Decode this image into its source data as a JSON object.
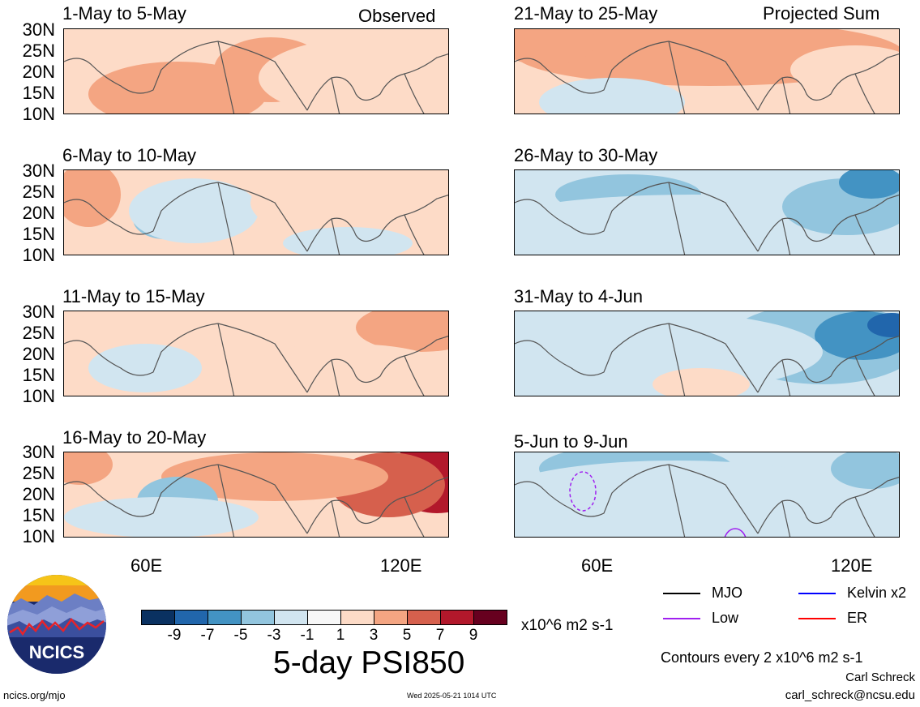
{
  "corner_labels": {
    "observed": "Observed",
    "projected": "Projected Sum"
  },
  "panels_left": [
    {
      "title": "1-May to 5-May"
    },
    {
      "title": "6-May to 10-May"
    },
    {
      "title": "11-May to 15-May"
    },
    {
      "title": "16-May to 20-May"
    }
  ],
  "panels_right": [
    {
      "title": "21-May to 25-May"
    },
    {
      "title": "26-May to 30-May"
    },
    {
      "title": "31-May to 4-Jun"
    },
    {
      "title": "5-Jun to 9-Jun"
    }
  ],
  "lat_labels": [
    "30N",
    "25N",
    "20N",
    "15N",
    "10N"
  ],
  "lon_labels": [
    "60E",
    "120E"
  ],
  "colorbar": {
    "colors": [
      "#0a3161",
      "#2166ac",
      "#4393c3",
      "#92c5de",
      "#d1e5f0",
      "#f7f7f7",
      "#fddbc7",
      "#f4a582",
      "#d6604d",
      "#b2182b",
      "#67001f"
    ],
    "ticks": [
      "-9",
      "-7",
      "-5",
      "-3",
      "-1",
      "1",
      "3",
      "5",
      "7",
      "9"
    ],
    "units": "x10^6 m2 s-1"
  },
  "main_title": "5-day PSI850",
  "legend": [
    {
      "label": "MJO",
      "color": "#000000"
    },
    {
      "label": "Kelvin x2",
      "color": "#0000ff"
    },
    {
      "label": "Low",
      "color": "#a020f0"
    },
    {
      "label": "ER",
      "color": "#ff0000"
    }
  ],
  "contour_note": "Contours every 2 x10^6 m2 s-1",
  "author": "Carl Schreck",
  "email": "carl_schreck@ncsu.edu",
  "site": "ncics.org/mjo",
  "timestamp": "Wed 2025-05-21 1014 UTC",
  "logo_text": "NCICS"
}
